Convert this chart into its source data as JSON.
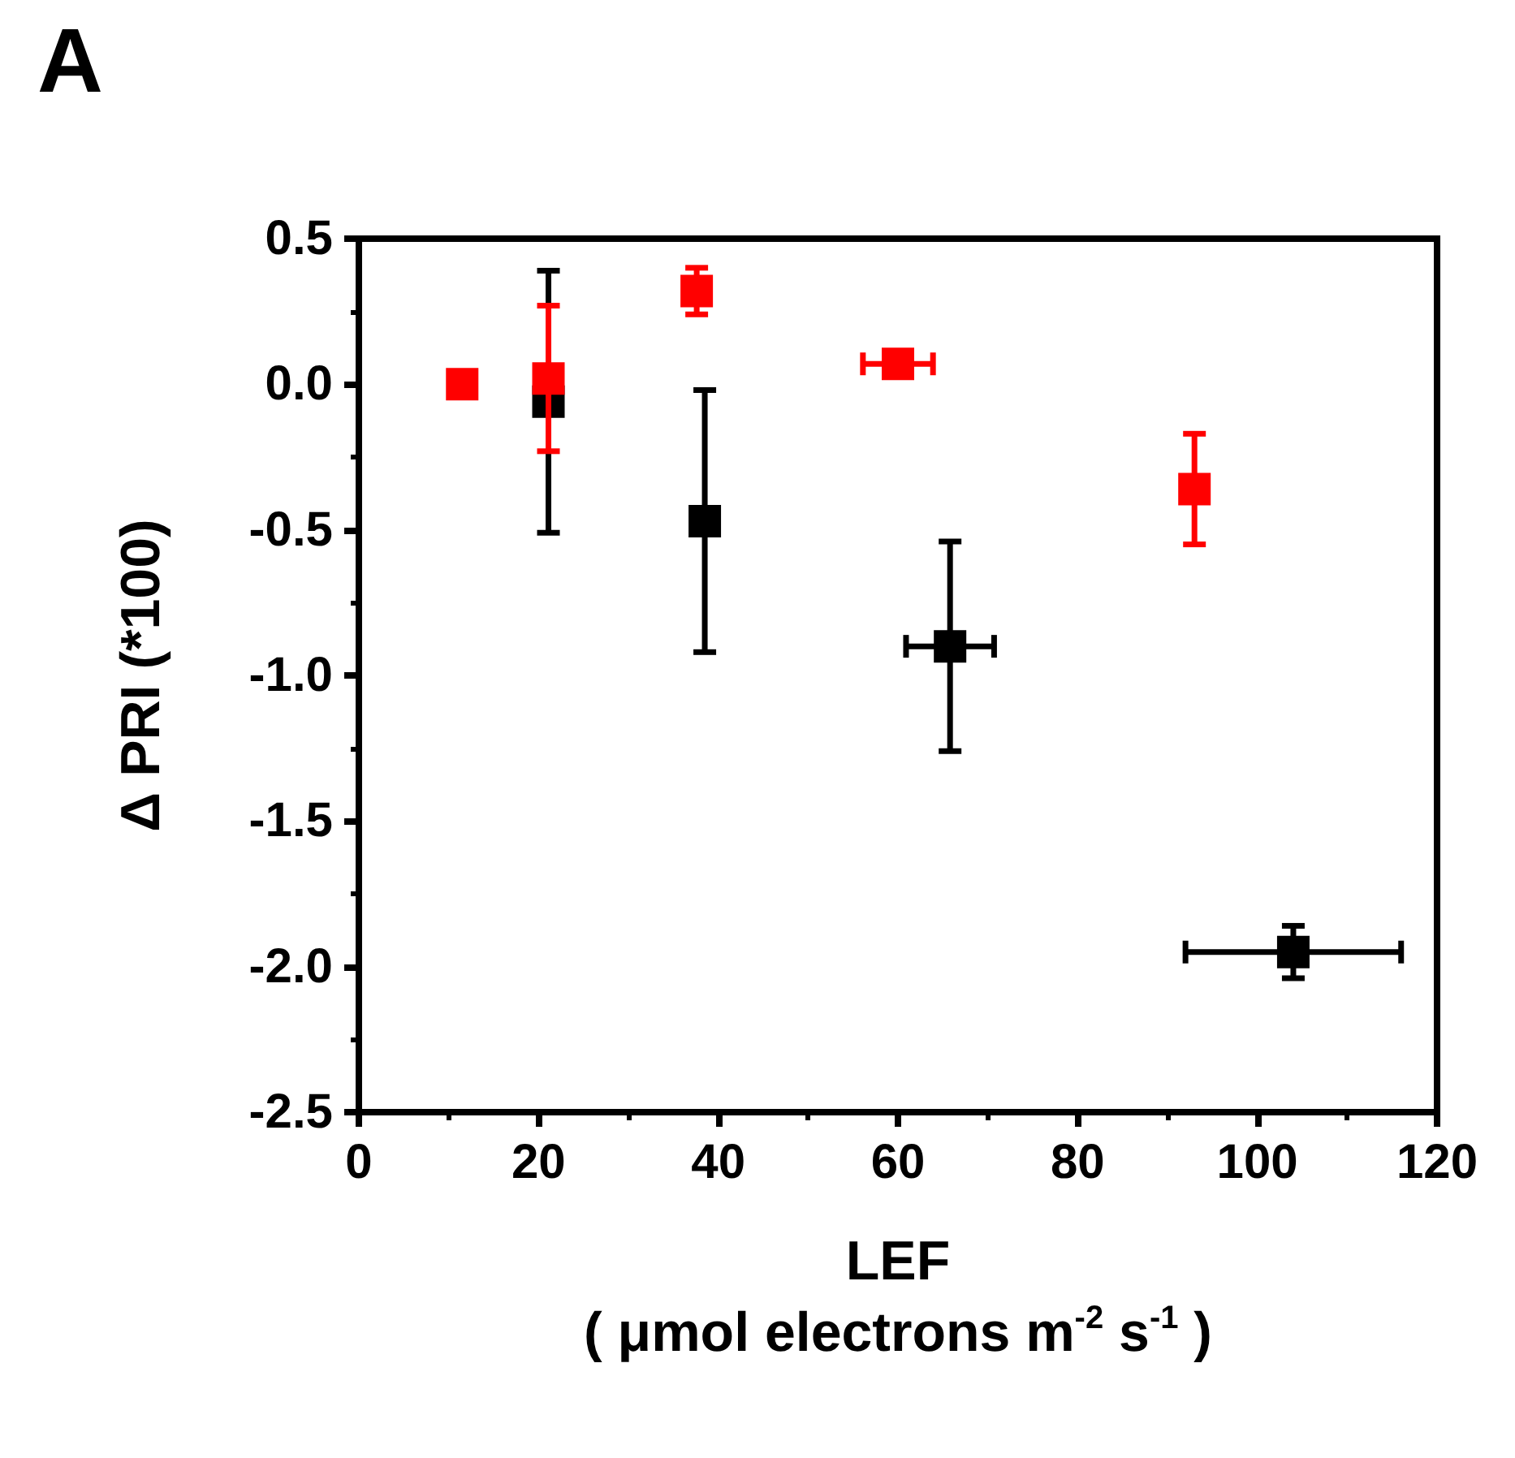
{
  "chart_data": {
    "type": "scatter",
    "title": "A",
    "xlabel": "LEF\n( μmol electrons m$^{-2}$ s$^{-1}$ )",
    "ylabel": "Δ PRI (*100)",
    "xlim": [
      0,
      120
    ],
    "xticks": [
      0,
      20,
      40,
      60,
      80,
      100,
      120
    ],
    "ylim": [
      -2.5,
      0.5
    ],
    "yticks": [
      0.5,
      {
        "value": 0,
        "label": "0.0"
      },
      -0.5,
      {
        "value": -1,
        "label": "-1.0"
      },
      -1.5,
      {
        "value": -2,
        "label": "-2.0"
      },
      -2.5
    ],
    "grid": false,
    "marker": "square",
    "series": [
      {
        "color": "#000000",
        "x": [
          21.1,
          38.5,
          65.8,
          104.0
        ],
        "values": [
          -0.06,
          -0.47,
          -0.9,
          -1.95
        ],
        "errors": [
          0.45,
          0.45,
          0.36,
          0.09
        ],
        "xerrors": [
          null,
          null,
          4.9,
          12
        ]
      },
      {
        "color": "#ff0000",
        "x": [
          11.5,
          21.1,
          37.6,
          60.0,
          93.0
        ],
        "values": [
          0.0,
          0.02,
          0.32,
          0.07,
          -0.36
        ],
        "errors": [
          null,
          0.25,
          0.08,
          null,
          0.19
        ],
        "xerrors": [
          null,
          null,
          null,
          3.9,
          null
        ]
      }
    ]
  }
}
